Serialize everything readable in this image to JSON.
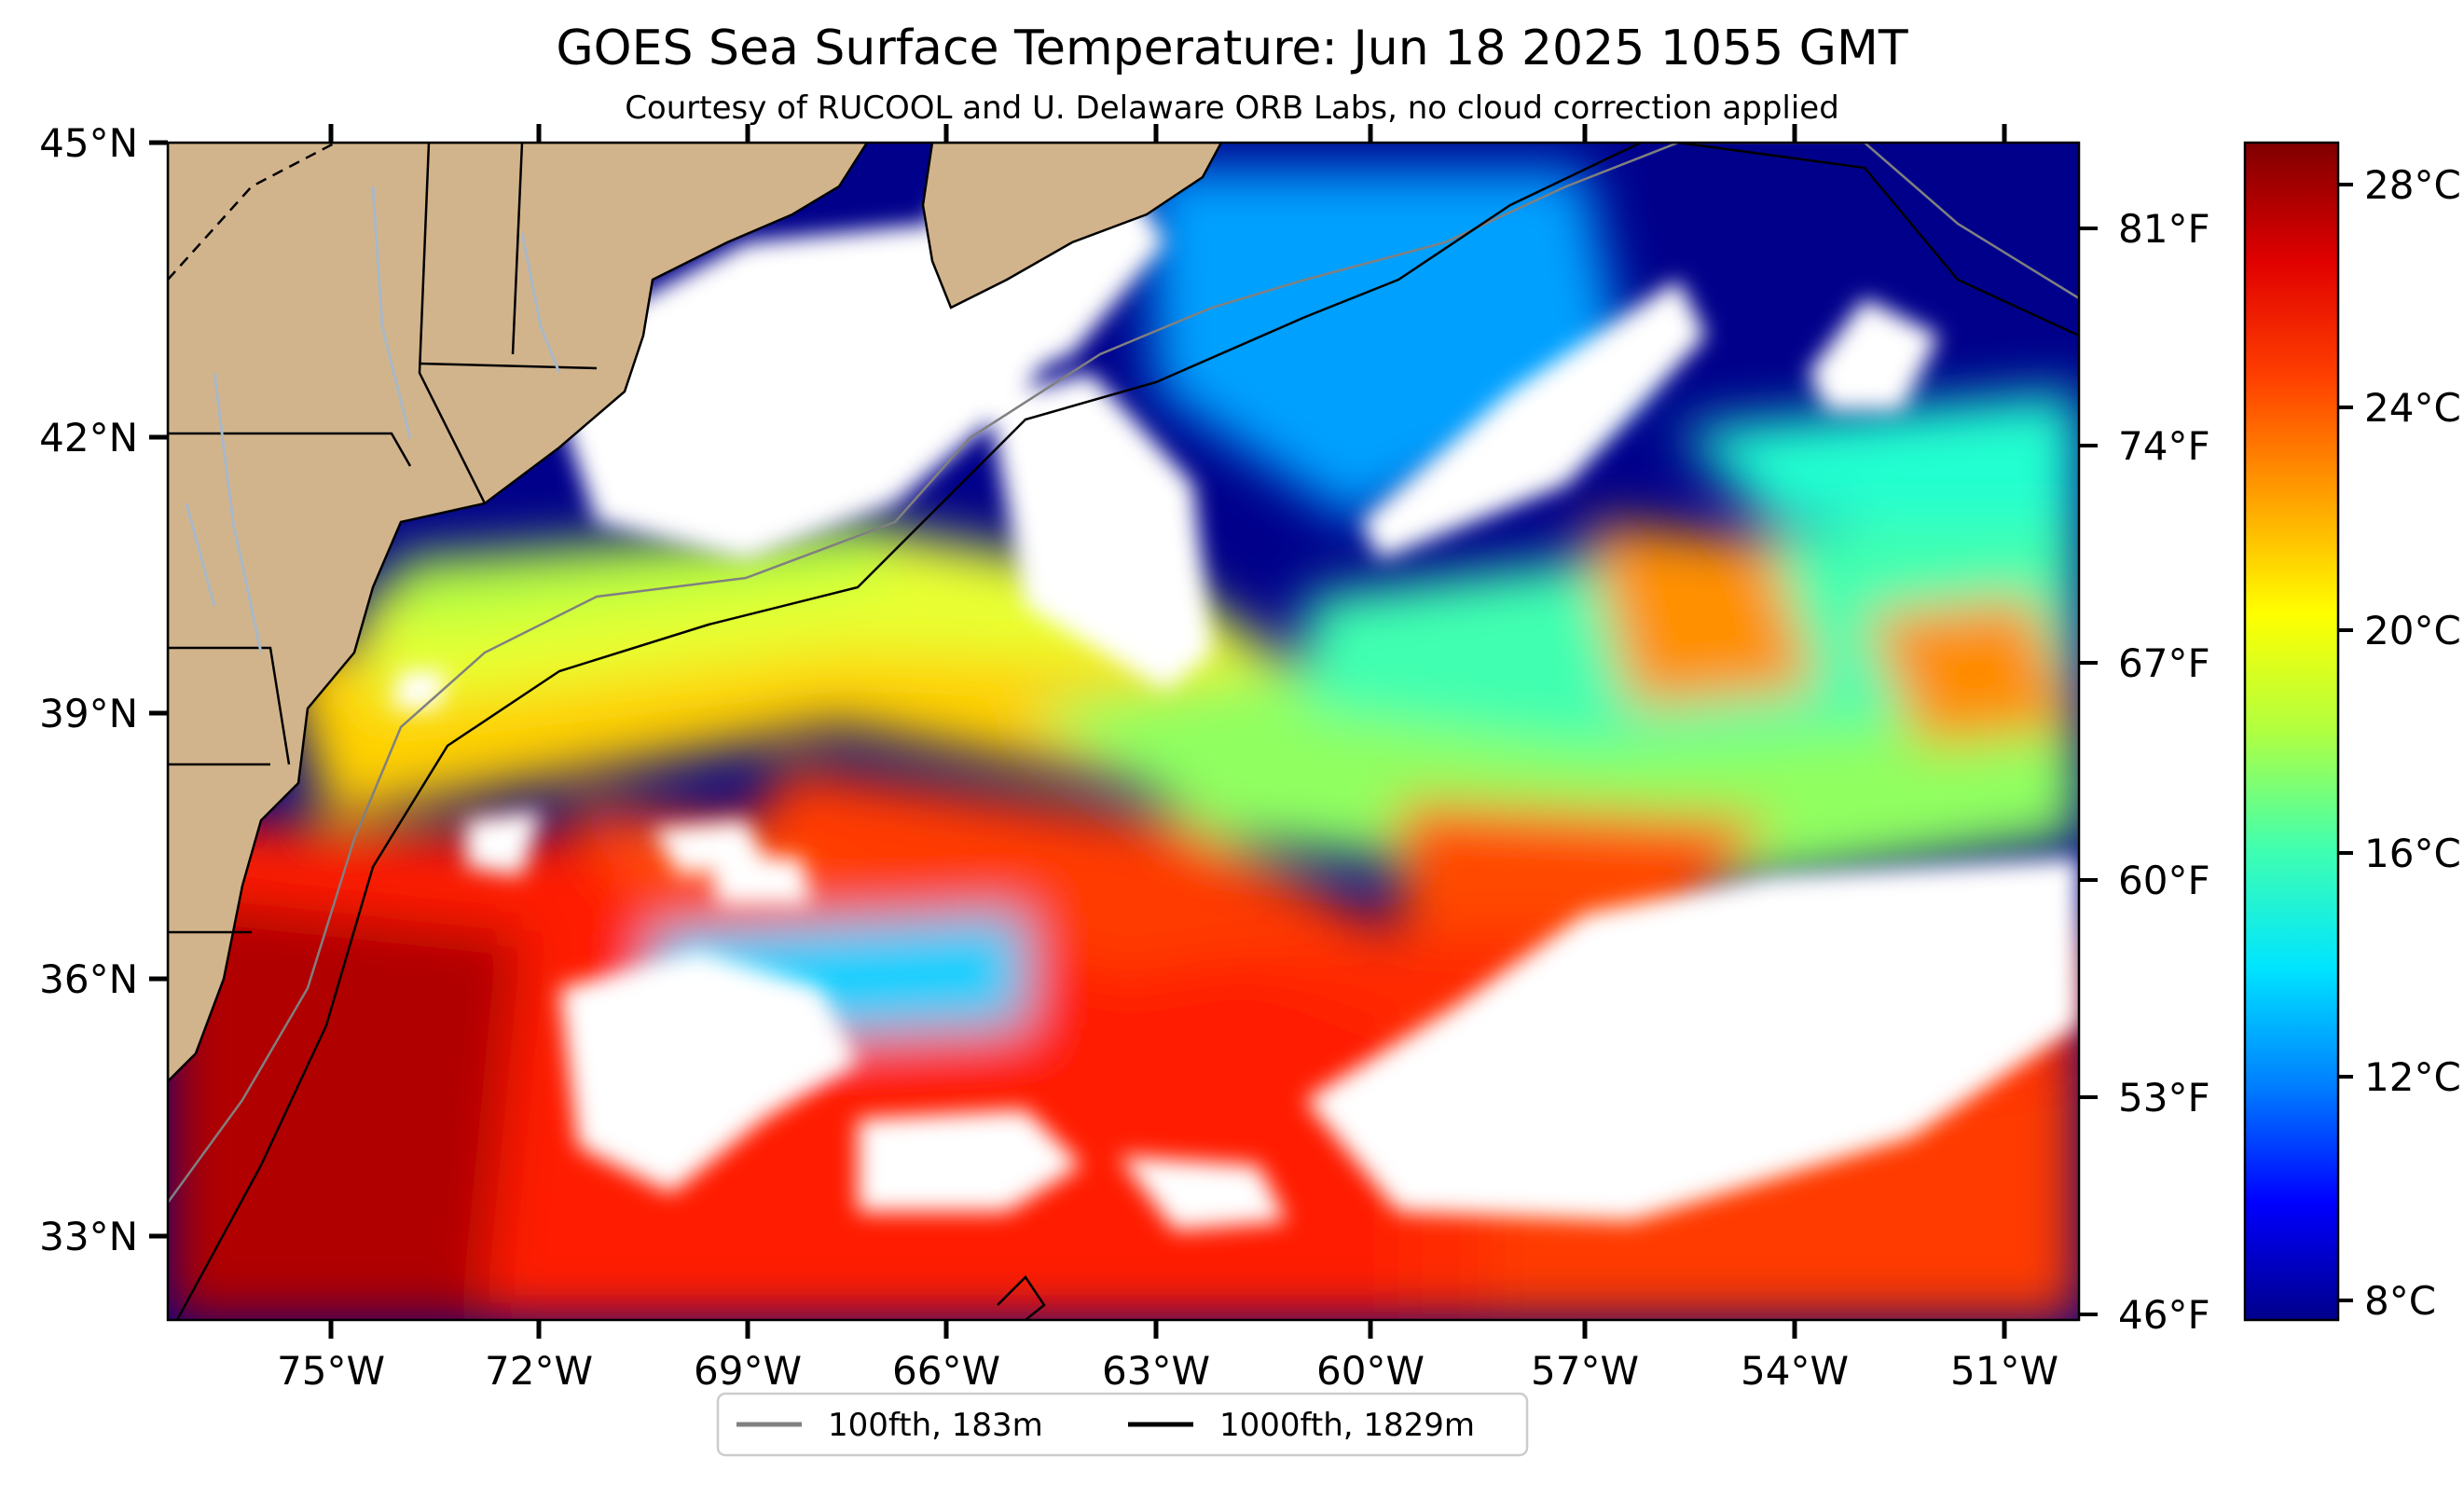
{
  "title": "GOES Sea Surface Temperature: Jun 18 2025 1055 GMT",
  "subtitle": "Courtesy of RUCOOL and U. Delaware ORB Labs, no cloud correction applied",
  "lat_labels": [
    "45°N",
    "42°N",
    "39°N",
    "36°N",
    "33°N"
  ],
  "lon_labels": [
    "75°W",
    "72°W",
    "69°W",
    "66°W",
    "63°W",
    "60°W",
    "57°W",
    "54°W",
    "51°W"
  ],
  "f_labels": [
    "81°F",
    "74°F",
    "67°F",
    "60°F",
    "53°F",
    "46°F"
  ],
  "colorbar": {
    "labels": [
      "28°C",
      "24°C",
      "20°C",
      "16°C",
      "12°C",
      "8°C"
    ],
    "stops": [
      "#00008b",
      "#0000ff",
      "#0080ff",
      "#00e5ff",
      "#40ffb0",
      "#b0ff40",
      "#ffff00",
      "#ffa000",
      "#ff4000",
      "#e00000",
      "#800000"
    ]
  },
  "legend": {
    "items": [
      {
        "label": "100fth, 183m",
        "color": "#808080"
      },
      {
        "label": "1000fth, 1829m",
        "color": "#000000"
      }
    ]
  },
  "colors": {
    "land": "#d2b48c",
    "cloud": "#ffffff",
    "lake": "#a9b8c8"
  }
}
